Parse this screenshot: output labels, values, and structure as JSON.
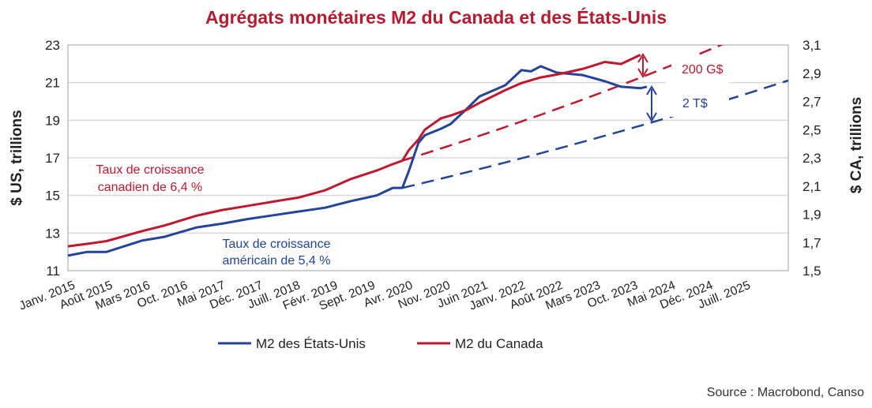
{
  "chart_data": {
    "type": "line",
    "title": "Agrégats monétaires M2 du Canada et des États-Unis",
    "ylabel_left": "$ US, trillions",
    "ylabel_right": "$ CA, trillions",
    "ylim_left": [
      11,
      23
    ],
    "ylim_right": [
      1.5,
      3.1
    ],
    "yticks_left": [
      "11",
      "13",
      "15",
      "17",
      "19",
      "21",
      "23"
    ],
    "yticks_right": [
      "1,5",
      "1,7",
      "1,9",
      "2,1",
      "2,3",
      "2,5",
      "2,7",
      "2,9",
      "3,1"
    ],
    "xlim_years": [
      2015.0,
      2026.2
    ],
    "xtick_labels": [
      "Janv. 2015",
      "Août 2015",
      "Mars 2016",
      "Oct. 2016",
      "Mai 2017",
      "Déc. 2017",
      "Juill. 2018",
      "Févr. 2019",
      "Sept. 2019",
      "Avr. 2020",
      "Nov. 2020",
      "Juin 2021",
      "Janv. 2022",
      "Août 2022",
      "Mars 2023",
      "Oct. 2023",
      "Mai 2024",
      "Déc. 2024",
      "Juill. 2025"
    ],
    "grid": true,
    "legend_position": "bottom",
    "series": [
      {
        "name": "M2 des États-Unis",
        "axis": "left",
        "color": "#24449A",
        "x": [
          2015.0,
          2015.3,
          2015.6,
          2016.15,
          2016.5,
          2017.0,
          2017.4,
          2017.8,
          2018.2,
          2018.6,
          2019.0,
          2019.4,
          2019.8,
          2020.05,
          2020.2,
          2020.3,
          2020.45,
          2020.55,
          2020.8,
          2020.95,
          2021.2,
          2021.4,
          2021.8,
          2022.05,
          2022.2,
          2022.35,
          2022.6,
          2023.0,
          2023.35,
          2023.6,
          2023.9,
          2024.0
        ],
        "values": [
          11.8,
          12.0,
          12.0,
          12.6,
          12.8,
          13.3,
          13.5,
          13.75,
          13.95,
          14.15,
          14.35,
          14.7,
          15.0,
          15.4,
          15.4,
          16.3,
          17.8,
          18.2,
          18.55,
          18.8,
          19.6,
          20.27,
          20.86,
          21.66,
          21.6,
          21.87,
          21.53,
          21.4,
          21.07,
          20.78,
          20.7,
          20.78
        ]
      },
      {
        "name": "M2 du Canada",
        "axis": "right",
        "color": "#C0182F",
        "x": [
          2015.0,
          2015.3,
          2015.6,
          2016.15,
          2016.5,
          2017.0,
          2017.4,
          2017.8,
          2018.2,
          2018.6,
          2019.0,
          2019.4,
          2019.8,
          2020.05,
          2020.2,
          2020.3,
          2020.45,
          2020.55,
          2020.8,
          2020.95,
          2021.2,
          2021.4,
          2021.8,
          2022.05,
          2022.35,
          2022.6,
          2023.0,
          2023.35,
          2023.6,
          2023.9
        ],
        "values": [
          1.673,
          1.69,
          1.71,
          1.78,
          1.82,
          1.89,
          1.93,
          1.96,
          1.99,
          2.02,
          2.07,
          2.15,
          2.21,
          2.255,
          2.28,
          2.355,
          2.43,
          2.5,
          2.58,
          2.6,
          2.64,
          2.69,
          2.78,
          2.83,
          2.87,
          2.89,
          2.93,
          2.98,
          2.965,
          3.03
        ]
      }
    ],
    "trends": [
      {
        "name": "Tendance américaine",
        "axis": "left",
        "color": "#24449A",
        "start_year": 2020.2,
        "start_value": 15.4,
        "annual_growth_pct": 5.4,
        "label": "Taux de croissance américain de 5,4 %"
      },
      {
        "name": "Tendance canadienne",
        "axis": "right",
        "color": "#C0182F",
        "start_year": 2020.2,
        "start_value": 2.28,
        "annual_growth_pct": 6.4,
        "label": "Taux de croissance canadien de 6,4 %"
      }
    ],
    "annotations": {
      "canada_label_line1": "Taux de croissance",
      "canada_label_line2": "canadien de 6,4 %",
      "us_label_line1": "Taux de croissance",
      "us_label_line2": "américain de 5,4 %",
      "canada_gap": "200 G$",
      "us_gap": "2 T$"
    },
    "source": "Source : Macrobond, Canso"
  }
}
